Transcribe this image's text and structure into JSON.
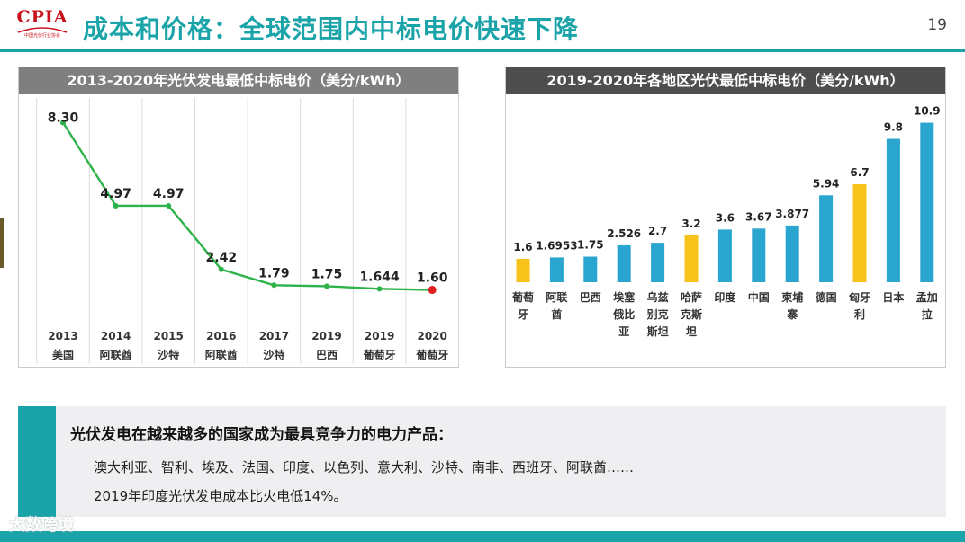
{
  "header": {
    "logo_text": "CPIA",
    "logo_subtitle": "中国光伏行业协会",
    "title": "成本和价格：全球范围内中标电价快速下降",
    "page_number": "19"
  },
  "colors": {
    "teal": "#1aa3a8",
    "line_green": "#2db34a",
    "endpoint_red": "#e02020",
    "bar_blue": "#2aa5cf",
    "bar_yellow": "#f7c21a"
  },
  "chart_data": [
    {
      "type": "line",
      "title": "2013-2020年光伏发电最低中标电价（美分/kWh）",
      "categories": [
        {
          "year": "2013",
          "country": "美国"
        },
        {
          "year": "2014",
          "country": "阿联酋"
        },
        {
          "year": "2015",
          "country": "沙特"
        },
        {
          "year": "2016",
          "country": "阿联酋"
        },
        {
          "year": "2017",
          "country": "沙特"
        },
        {
          "year": "2019",
          "country": "巴西"
        },
        {
          "year": "2019",
          "country": "葡萄牙"
        },
        {
          "year": "2020",
          "country": "葡萄牙"
        }
      ],
      "values": [
        8.3,
        4.97,
        4.97,
        2.42,
        1.79,
        1.75,
        1.644,
        1.6
      ],
      "labels": [
        "8.30",
        "4.97",
        "4.97",
        "2.42",
        "1.79",
        "1.75",
        "1.644",
        "1.60"
      ],
      "highlight_last_point": true,
      "ylim": [
        0,
        9
      ],
      "grid": "vertical"
    },
    {
      "type": "bar",
      "title": "2019-2020年各地区光伏最低中标电价（美分/kWh）",
      "categories": [
        {
          "lines": [
            "葡萄",
            "牙"
          ],
          "color": "yellow"
        },
        {
          "lines": [
            "阿联",
            "酋"
          ],
          "color": "blue"
        },
        {
          "lines": [
            "巴西"
          ],
          "color": "blue"
        },
        {
          "lines": [
            "埃塞",
            "俄比",
            "亚"
          ],
          "color": "blue"
        },
        {
          "lines": [
            "乌兹",
            "别克",
            "斯坦"
          ],
          "color": "blue"
        },
        {
          "lines": [
            "哈萨",
            "克斯",
            "坦"
          ],
          "color": "yellow"
        },
        {
          "lines": [
            "印度"
          ],
          "color": "blue"
        },
        {
          "lines": [
            "中国"
          ],
          "color": "blue"
        },
        {
          "lines": [
            "柬埔",
            "寨"
          ],
          "color": "blue"
        },
        {
          "lines": [
            "德国"
          ],
          "color": "blue"
        },
        {
          "lines": [
            "匈牙",
            "利"
          ],
          "color": "yellow"
        },
        {
          "lines": [
            "日本"
          ],
          "color": "blue"
        },
        {
          "lines": [
            "孟加",
            "拉"
          ],
          "color": "blue"
        }
      ],
      "values": [
        1.6,
        1.6953,
        1.75,
        2.526,
        2.7,
        3.2,
        3.6,
        3.67,
        3.877,
        5.94,
        6.7,
        9.8,
        10.9
      ],
      "labels": [
        "1.6",
        "1.6953",
        "1.75",
        "2.526",
        "2.7",
        "3.2",
        "3.6",
        "3.67",
        "3.877",
        "5.94",
        "6.7",
        "9.8",
        "10.9"
      ],
      "ylim": [
        0,
        11
      ]
    }
  ],
  "summary": {
    "title": "光伏发电在越来越多的国家成为最具竞争力的电力产品：",
    "line1": "澳大利亚、智利、埃及、法国、印度、以色列、意大利、沙特、南非、西班牙、阿联酋……",
    "line2": "2019年印度光伏发电成本比火电低14%。"
  },
  "watermark": "大数跨境"
}
